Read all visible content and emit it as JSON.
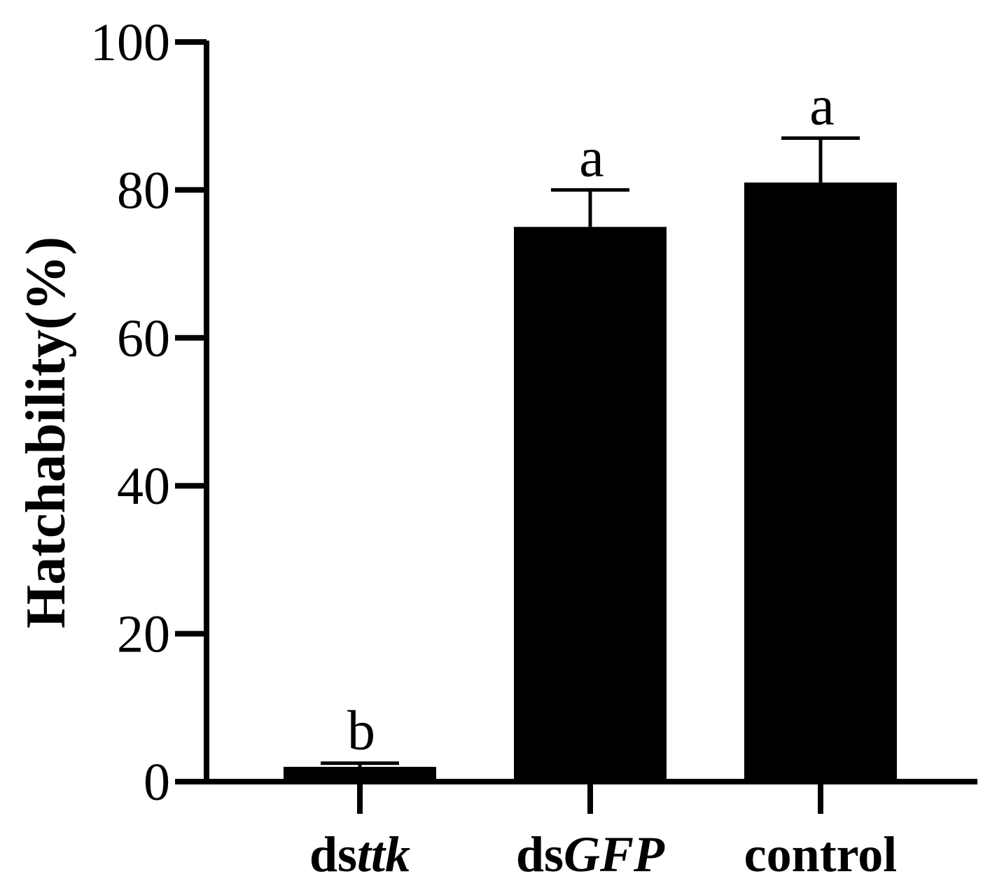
{
  "chart_data": {
    "type": "bar",
    "ylabel": "Hatchability(%)",
    "ylim": [
      0,
      100
    ],
    "yticks": [
      0,
      20,
      40,
      60,
      80,
      100
    ],
    "categories": [
      {
        "parts": [
          {
            "text": "ds",
            "italic": false
          },
          {
            "text": "ttk",
            "italic": true
          }
        ]
      },
      {
        "parts": [
          {
            "text": "ds",
            "italic": false
          },
          {
            "text": "GFP",
            "italic": true
          }
        ]
      },
      {
        "parts": [
          {
            "text": "control",
            "italic": false
          }
        ]
      }
    ],
    "values": [
      2.0,
      75.0,
      81.0
    ],
    "errors": [
      0.5,
      5.0,
      6.0
    ],
    "significance": [
      "b",
      "a",
      "a"
    ],
    "bar_color": "#000000",
    "grid": false,
    "legend": "none"
  }
}
